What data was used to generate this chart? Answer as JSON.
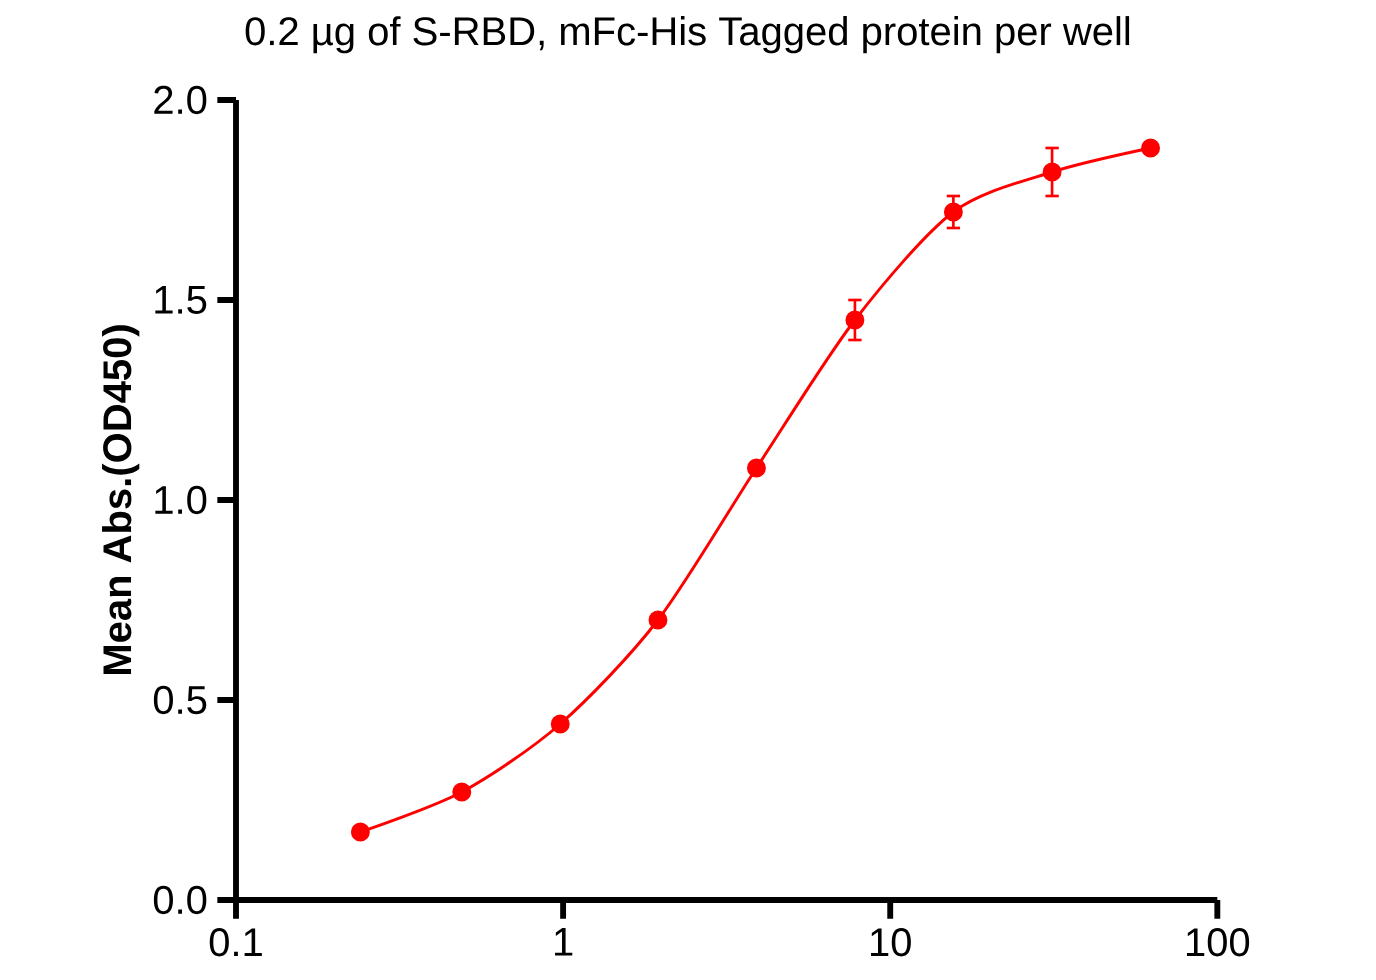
{
  "chart_data": {
    "type": "line",
    "title": "0.2 µg of S-RBD, mFc-His Tagged protein per well",
    "ylabel": "Mean Abs.(OD450)",
    "log": "x",
    "xlim": [
      0.1,
      100
    ],
    "xticks": [
      0.1,
      1,
      10,
      100
    ],
    "ylim": [
      0,
      2.0
    ],
    "yticks": [
      {
        "value": 0,
        "label": "0.0"
      },
      {
        "value": 0.5,
        "label": "0.5"
      },
      {
        "value": 1,
        "label": "1.0"
      },
      {
        "value": 1.5,
        "label": "1.5"
      },
      {
        "value": 2,
        "label": "2.0"
      }
    ],
    "x": [
      0.24,
      0.49,
      0.98,
      1.95,
      3.9,
      7.8,
      15.6,
      31.25,
      62.5
    ],
    "series": [
      {
        "color": "#ff0000",
        "values": [
          0.17,
          0.27,
          0.44,
          0.7,
          1.08,
          1.45,
          1.72,
          1.82,
          1.88
        ],
        "errors": [
          null,
          null,
          null,
          null,
          null,
          0.05,
          0.04,
          0.06,
          null
        ]
      }
    ],
    "marker": "circle",
    "line_style": "solid"
  }
}
